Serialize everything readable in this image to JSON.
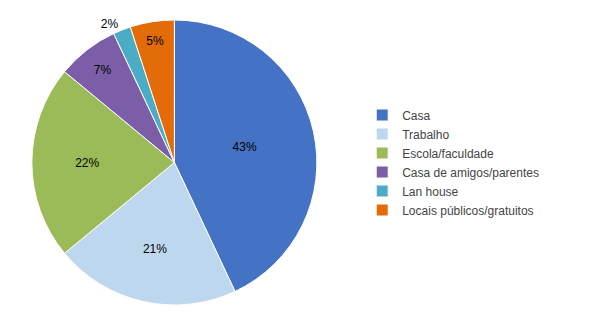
{
  "chart_data": {
    "type": "pie",
    "categories": [
      "Casa",
      "Trabalho",
      "Escola/faculdade",
      "Casa de amigos/parentes",
      "Lan house",
      "Locais públicos/gratuitos"
    ],
    "values": [
      43,
      21,
      22,
      7,
      2,
      5
    ],
    "value_labels": [
      "43%",
      "21%",
      "22%",
      "7%",
      "2%",
      "5%"
    ],
    "colors": [
      "#4472C4",
      "#BDD7EE",
      "#9BBB59",
      "#7B5EA7",
      "#4BACC6",
      "#E36C09"
    ],
    "data_labels": true,
    "legend": "right"
  }
}
